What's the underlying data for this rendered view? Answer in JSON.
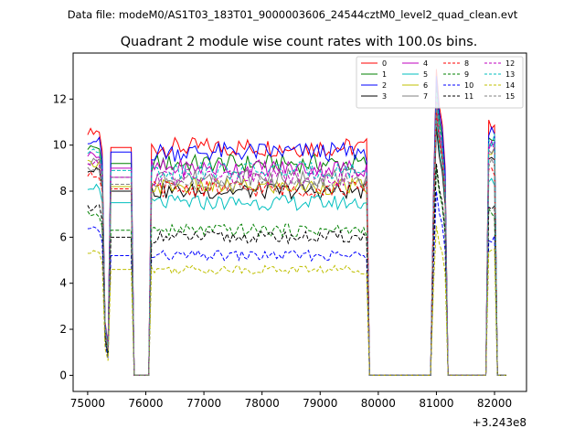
{
  "figure": {
    "suptitle": "Data file: modeM0/AS1T03_183T01_9000003606_24544cztM0_level2_quad_clean.evt",
    "title": "Quadrant 2 module wise count rates with 100.0s bins.",
    "x_offset_label": "+3.243e8"
  },
  "chart_data": {
    "type": "line",
    "title": "Quadrant 2 module wise count rates with 100.0s bins.",
    "xlabel": "",
    "ylabel": "",
    "x_offset": 324300000,
    "xlim": [
      74750,
      82550
    ],
    "ylim": [
      -0.7,
      14.0
    ],
    "xticks": [
      75000,
      76000,
      77000,
      78000,
      79000,
      80000,
      81000,
      82000
    ],
    "yticks": [
      0,
      2,
      4,
      6,
      8,
      10,
      12
    ],
    "grid": false,
    "legend": {
      "placement": "top-right",
      "columns": 4
    },
    "x_start": 75000,
    "x_step": 50,
    "x_count": 25,
    "segments": [
      [
        75000,
        75800
      ],
      [
        76050,
        79850
      ]
    ],
    "gaps": [
      [
        75800,
        76050
      ],
      [
        79850,
        80900
      ],
      [
        81200,
        81850
      ],
      [
        82050,
        82200
      ]
    ],
    "bursts": [
      [
        81000,
        81050
      ],
      [
        81850,
        82050
      ]
    ],
    "series": [
      {
        "name": "0",
        "color": "#ff0000",
        "dash": "solid",
        "level": 9.9,
        "startv": 10.6,
        "peak": 13.3,
        "tail": 10.9
      },
      {
        "name": "1",
        "color": "#008000",
        "dash": "solid",
        "level": 9.2,
        "startv": 9.9,
        "peak": 12.6,
        "tail": 10.3
      },
      {
        "name": "2",
        "color": "#0000ff",
        "dash": "solid",
        "level": 9.7,
        "startv": 10.2,
        "peak": 13.0,
        "tail": 10.6
      },
      {
        "name": "3",
        "color": "#000000",
        "dash": "solid",
        "level": 8.0,
        "startv": 8.9,
        "peak": 10.8,
        "tail": 9.2
      },
      {
        "name": "4",
        "color": "#bf00bf",
        "dash": "solid",
        "level": 9.0,
        "startv": 9.6,
        "peak": 12.0,
        "tail": 10.0
      },
      {
        "name": "5",
        "color": "#00bfbf",
        "dash": "solid",
        "level": 7.5,
        "startv": 8.2,
        "peak": 11.2,
        "tail": 8.4
      },
      {
        "name": "6",
        "color": "#bfbf00",
        "dash": "solid",
        "level": 8.2,
        "startv": 9.2,
        "peak": 11.6,
        "tail": 9.8
      },
      {
        "name": "7",
        "color": "#808080",
        "dash": "solid",
        "level": 8.6,
        "startv": 9.3,
        "peak": 11.7,
        "tail": 9.7
      },
      {
        "name": "8",
        "color": "#ff0000",
        "dash": "dashed",
        "level": 8.1,
        "startv": 8.7,
        "peak": 11.5,
        "tail": 8.9
      },
      {
        "name": "9",
        "color": "#008000",
        "dash": "dashed",
        "level": 6.3,
        "startv": 7.0,
        "peak": 9.0,
        "tail": 7.0
      },
      {
        "name": "10",
        "color": "#0000ff",
        "dash": "dashed",
        "level": 5.2,
        "startv": 6.3,
        "peak": 8.0,
        "tail": 6.0
      },
      {
        "name": "11",
        "color": "#000000",
        "dash": "dashed",
        "level": 6.0,
        "startv": 7.3,
        "peak": 9.2,
        "tail": 7.5
      },
      {
        "name": "12",
        "color": "#bf00bf",
        "dash": "dashed",
        "level": 8.6,
        "startv": 9.2,
        "peak": 12.1,
        "tail": 9.9
      },
      {
        "name": "13",
        "color": "#00bfbf",
        "dash": "dashed",
        "level": 8.9,
        "startv": 9.7,
        "peak": 12.3,
        "tail": 10.2
      },
      {
        "name": "14",
        "color": "#bfbf00",
        "dash": "dashed",
        "level": 4.6,
        "startv": 5.3,
        "peak": 6.5,
        "tail": 5.5
      },
      {
        "name": "15",
        "color": "#808080",
        "dash": "dashed",
        "level": 8.3,
        "startv": 9.0,
        "peak": 11.8,
        "tail": 9.3
      }
    ]
  }
}
